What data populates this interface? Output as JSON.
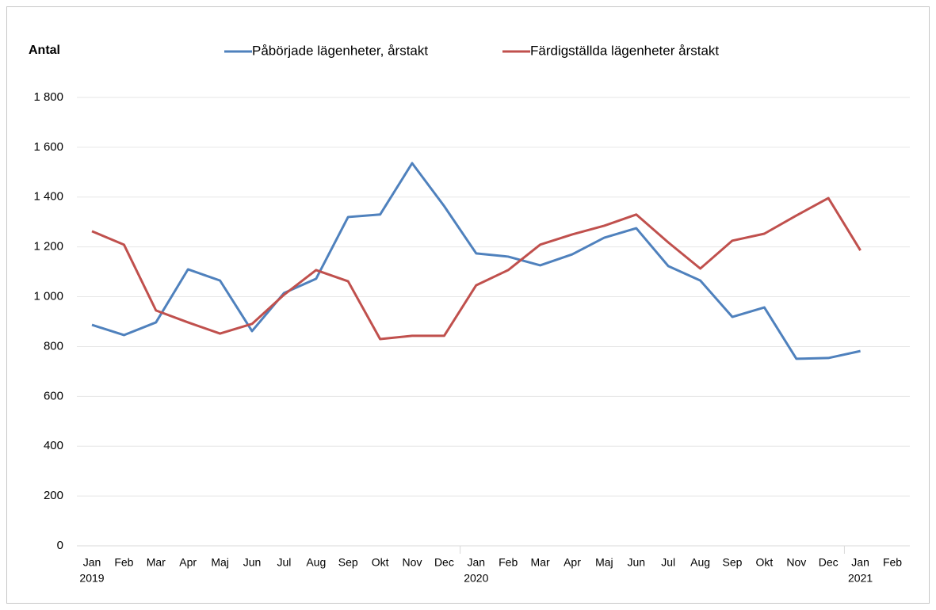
{
  "chart_data": {
    "type": "line",
    "y_label": "Antal",
    "categories": [
      "Jan",
      "Feb",
      "Mar",
      "Apr",
      "Maj",
      "Jun",
      "Jul",
      "Aug",
      "Sep",
      "Okt",
      "Nov",
      "Dec",
      "Jan",
      "Feb",
      "Mar",
      "Apr",
      "Maj",
      "Jun",
      "Jul",
      "Aug",
      "Sep",
      "Okt",
      "Nov",
      "Dec",
      "Jan",
      "Feb"
    ],
    "year_labels": [
      "2019",
      null,
      null,
      null,
      null,
      null,
      null,
      null,
      null,
      null,
      null,
      null,
      "2020",
      null,
      null,
      null,
      null,
      null,
      null,
      null,
      null,
      null,
      null,
      null,
      "2021",
      null
    ],
    "series": [
      {
        "name": "Påbörjade lägenheter, årstakt",
        "color": "#4f81bd",
        "values": [
          887,
          846,
          897,
          1110,
          1065,
          862,
          1015,
          1072,
          1320,
          1330,
          1536,
          1364,
          1174,
          1161,
          1126,
          1170,
          1237,
          1275,
          1123,
          1065,
          919,
          957,
          751,
          754,
          782,
          null
        ]
      },
      {
        "name": "Färdigställda lägenheter årstakt",
        "color": "#c0504d",
        "values": [
          1263,
          1209,
          945,
          897,
          852,
          891,
          1008,
          1107,
          1062,
          830,
          843,
          843,
          1046,
          1107,
          1209,
          1250,
          1285,
          1330,
          1218,
          1113,
          1225,
          1253,
          1326,
          1396,
          1186,
          null
        ]
      }
    ],
    "ylim": [
      0,
      1800
    ],
    "yticks": [
      0,
      200,
      400,
      600,
      800,
      {
        "value": 1000,
        "label": "1 000"
      },
      {
        "value": 1200,
        "label": "1 200"
      },
      {
        "value": 1400,
        "label": "1 400"
      },
      {
        "value": 1600,
        "label": "1 600"
      },
      {
        "value": 1800,
        "label": "1 800"
      }
    ],
    "grid": true,
    "legend": "top"
  }
}
